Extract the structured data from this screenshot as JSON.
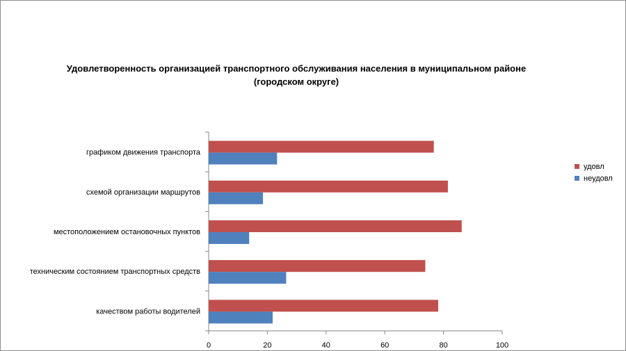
{
  "chart_data": {
    "type": "bar",
    "orientation": "horizontal",
    "title_lines": [
      "Удовлетворенность организацией транспортного обслуживания населения в муниципальном районе",
      "(городском округе)"
    ],
    "categories": [
      "графиком движения транспорта",
      "схемой организации маршрутов",
      "местоположением остановочных пунктов",
      "техническим состоянием транспортных средств",
      "качеством работы водителей"
    ],
    "series": [
      {
        "name": "удовл",
        "color": "#c0504d",
        "values": [
          76.7,
          81.5,
          86.2,
          73.8,
          78.2
        ]
      },
      {
        "name": "неудовл",
        "color": "#4f81bd",
        "values": [
          23.3,
          18.5,
          13.8,
          26.4,
          21.8
        ]
      }
    ],
    "xlim": [
      0,
      100
    ],
    "xticks": [
      0,
      20,
      40,
      60,
      80,
      100
    ],
    "xlabel": "",
    "ylabel": "",
    "grid": false,
    "legend_position": "right"
  }
}
